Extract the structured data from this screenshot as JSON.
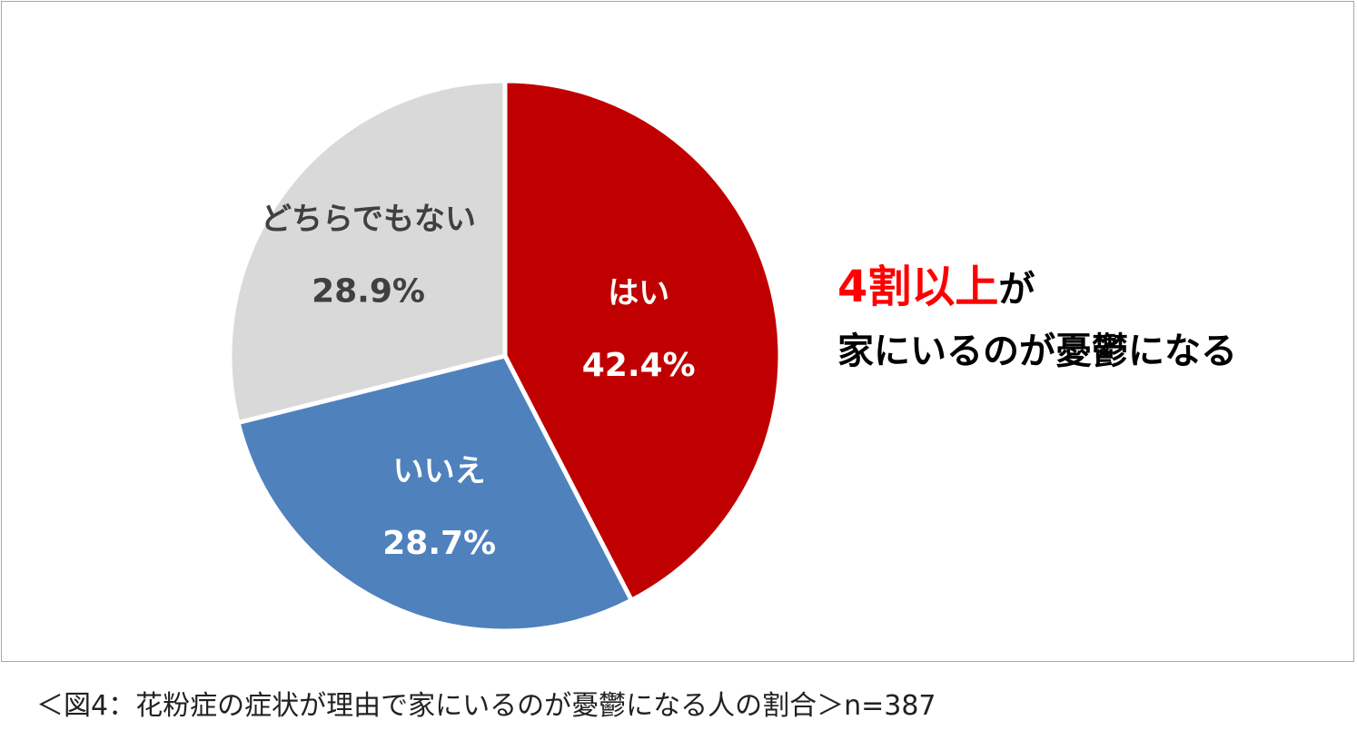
{
  "chart_data": {
    "type": "pie",
    "categories": [
      "はい",
      "いいえ",
      "どちらでもない"
    ],
    "values": [
      42.4,
      28.7,
      28.9
    ],
    "value_labels": [
      "42.4%",
      "28.7%",
      "28.9%"
    ],
    "colors": [
      "#c00000",
      "#4f81bd",
      "#d9d9d9"
    ],
    "label_colors": [
      "#ffffff",
      "#ffffff",
      "#404040"
    ],
    "start": "12 o'clock, clockwise",
    "legend": "none"
  },
  "headline": {
    "accent": "4割以上",
    "accent_suffix": "が",
    "line2": "家にいるのが憂鬱になる",
    "accent_color": "#ff0000"
  },
  "caption": "＜図4：花粉症の症状が理由で家にいるのが憂鬱になる人の割合＞n=387"
}
